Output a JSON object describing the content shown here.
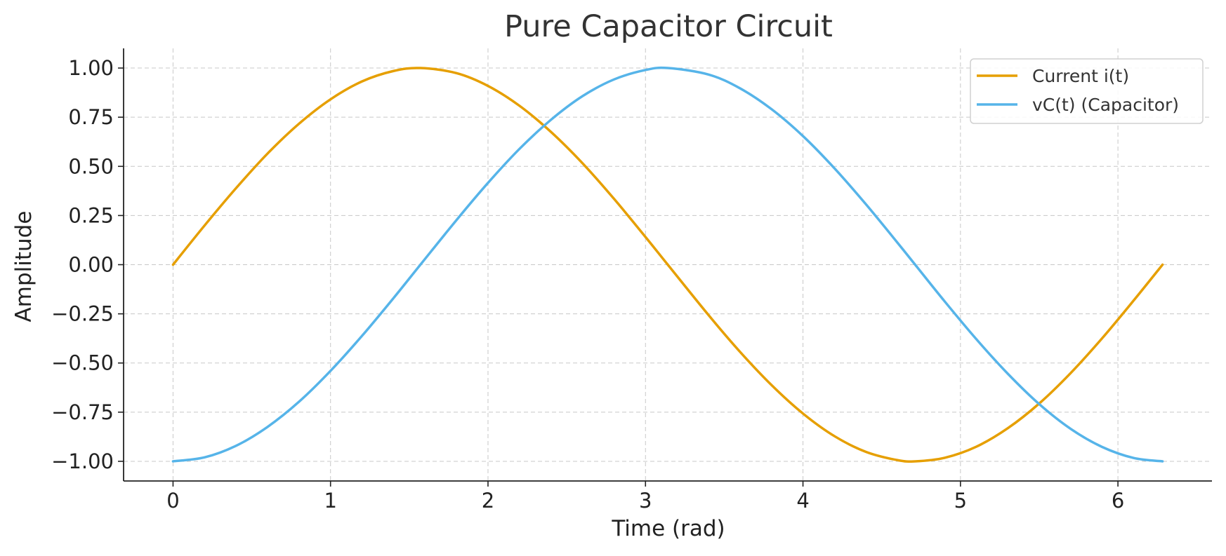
{
  "chart_data": {
    "type": "line",
    "title": "Pure Capacitor Circuit",
    "xlabel": "Time (rad)",
    "ylabel": "Amplitude",
    "xlim": [
      -0.314,
      6.597
    ],
    "ylim": [
      -1.1,
      1.1
    ],
    "x_ticks": [
      0,
      1,
      2,
      3,
      4,
      5,
      6
    ],
    "x_tick_labels": [
      "0",
      "1",
      "2",
      "3",
      "4",
      "5",
      "6"
    ],
    "y_ticks": [
      -1.0,
      -0.75,
      -0.5,
      -0.25,
      0.0,
      0.25,
      0.5,
      0.75,
      1.0
    ],
    "y_tick_labels": [
      "−1.00",
      "−0.75",
      "−0.50",
      "−0.25",
      "0.00",
      "0.25",
      "0.50",
      "0.75",
      "1.00"
    ],
    "grid": true,
    "legend_position": "top-right",
    "x": [
      0,
      0.2,
      0.4,
      0.6,
      0.8,
      1.0,
      1.2,
      1.4,
      1.5708,
      1.8,
      2.0,
      2.2,
      2.4,
      2.6,
      2.8,
      3.0,
      3.1416,
      3.4,
      3.6,
      3.8,
      4.0,
      4.2,
      4.4,
      4.6,
      4.7124,
      4.9,
      5.1,
      5.3,
      5.5,
      5.7,
      5.9,
      6.1,
      6.2832
    ],
    "series": [
      {
        "name": "Current i(t)",
        "color": "#E69F00",
        "values": [
          0.0,
          0.199,
          0.389,
          0.565,
          0.717,
          0.841,
          0.932,
          0.985,
          1.0,
          0.974,
          0.909,
          0.808,
          0.675,
          0.516,
          0.335,
          0.141,
          0.0,
          -0.256,
          -0.443,
          -0.612,
          -0.757,
          -0.872,
          -0.952,
          -0.994,
          -1.0,
          -0.982,
          -0.926,
          -0.832,
          -0.706,
          -0.551,
          -0.374,
          -0.182,
          0.0
        ]
      },
      {
        "name": "vC(t) (Capacitor)",
        "color": "#56B4E9",
        "values": [
          -1.0,
          -0.98,
          -0.921,
          -0.825,
          -0.697,
          -0.54,
          -0.362,
          -0.17,
          0.0,
          0.227,
          0.416,
          0.589,
          0.737,
          0.857,
          0.942,
          0.99,
          1.0,
          0.967,
          0.897,
          0.791,
          0.654,
          0.49,
          0.307,
          0.112,
          0.0,
          -0.187,
          -0.378,
          -0.554,
          -0.709,
          -0.835,
          -0.927,
          -0.983,
          -1.0
        ]
      }
    ]
  }
}
